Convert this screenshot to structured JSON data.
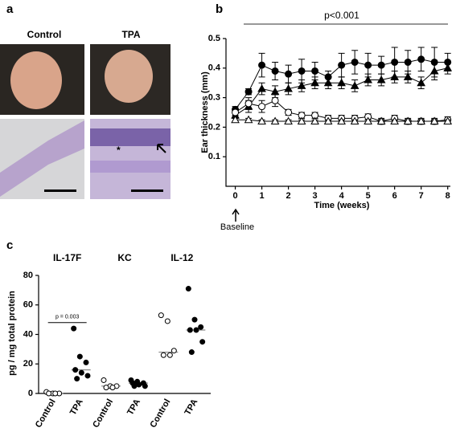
{
  "panel_a": {
    "label": "a",
    "columns": [
      "Control",
      "TPA"
    ],
    "asterisk": "*"
  },
  "chart_data": [
    {
      "type": "line",
      "label": "b",
      "ylabel": "Ear thickness (mm)",
      "xlabel": "Time (weeks)",
      "annotation": "p<0.001",
      "baseline_label": "Baseline",
      "x": [
        0,
        0.5,
        1,
        1.5,
        2,
        2.5,
        3,
        3.5,
        4,
        4.5,
        5,
        5.5,
        6,
        6.5,
        7,
        7.5,
        8
      ],
      "xlim": [
        -0.35,
        8.1
      ],
      "xticks": [
        0,
        1,
        2,
        3,
        4,
        5,
        6,
        7,
        8
      ],
      "ylim": [
        0,
        0.5
      ],
      "yticks": [
        0.1,
        0.2,
        0.3,
        0.4,
        0.5
      ],
      "series": [
        {
          "marker": "circle",
          "filled": true,
          "color": "#000",
          "values": [
            0.26,
            0.32,
            0.41,
            0.39,
            0.38,
            0.39,
            0.39,
            0.37,
            0.41,
            0.42,
            0.41,
            0.41,
            0.42,
            0.42,
            0.43,
            0.42,
            0.42
          ],
          "errors": [
            0.01,
            0.01,
            0.04,
            0.03,
            0.03,
            0.04,
            0.03,
            0.02,
            0.04,
            0.04,
            0.04,
            0.03,
            0.05,
            0.04,
            0.04,
            0.05,
            0.03
          ]
        },
        {
          "marker": "triangle",
          "filled": true,
          "color": "#000",
          "values": [
            0.24,
            0.27,
            0.33,
            0.32,
            0.33,
            0.34,
            0.35,
            0.35,
            0.35,
            0.34,
            0.36,
            0.36,
            0.37,
            0.37,
            0.35,
            0.39,
            0.4
          ],
          "errors": [
            0.01,
            0.02,
            0.02,
            0.02,
            0.02,
            0.02,
            0.02,
            0.02,
            0.02,
            0.02,
            0.02,
            0.02,
            0.02,
            0.02,
            0.02,
            0.03,
            0.02
          ]
        },
        {
          "marker": "circle",
          "filled": false,
          "color": "#000",
          "values": [
            0.25,
            0.28,
            0.27,
            0.29,
            0.25,
            0.24,
            0.24,
            0.23,
            0.23,
            0.23,
            0.235,
            0.22,
            0.23,
            0.22,
            0.22,
            0.22,
            0.225
          ],
          "errors": [
            0.01,
            0.02,
            0.02,
            0.02,
            0.01,
            0.01,
            0.01,
            0.01,
            0.01,
            0.01,
            0.01,
            0.01,
            0.01,
            0.01,
            0.01,
            0.01,
            0.01
          ]
        },
        {
          "marker": "triangle",
          "filled": false,
          "color": "#000",
          "values": [
            0.225,
            0.225,
            0.22,
            0.22,
            0.22,
            0.22,
            0.22,
            0.22,
            0.22,
            0.22,
            0.22,
            0.22,
            0.22,
            0.22,
            0.22,
            0.22,
            0.22
          ],
          "errors": [
            0.005,
            0.005,
            0.005,
            0.005,
            0.005,
            0.005,
            0.005,
            0.005,
            0.005,
            0.005,
            0.005,
            0.005,
            0.005,
            0.005,
            0.005,
            0.005,
            0.005
          ]
        }
      ]
    },
    {
      "type": "strip",
      "label": "c",
      "ylabel": "pg / mg total protein",
      "annotation": "p = 0.003",
      "annotation_y": 48,
      "categories": [
        "IL-17F",
        "KC",
        "IL-12"
      ],
      "ylim": [
        0,
        80
      ],
      "yticks": [
        0,
        20,
        40,
        60,
        80
      ],
      "series": [
        {
          "name": "Control",
          "filled": false,
          "values": [
            [
              1,
              0,
              0,
              0,
              0
            ],
            [
              9,
              5,
              5,
              4,
              4
            ],
            [
              53,
              49,
              29,
              26,
              26
            ]
          ],
          "medians": [
            0,
            5,
            28
          ]
        },
        {
          "name": "TPA",
          "filled": true,
          "values": [
            [
              44,
              25,
              21,
              16,
              14,
              12,
              10
            ],
            [
              9,
              8,
              7,
              7,
              6,
              5,
              5
            ],
            [
              71,
              50,
              45,
              43,
              43,
              35,
              28
            ]
          ],
          "medians": [
            16,
            7,
            43
          ]
        }
      ]
    }
  ]
}
